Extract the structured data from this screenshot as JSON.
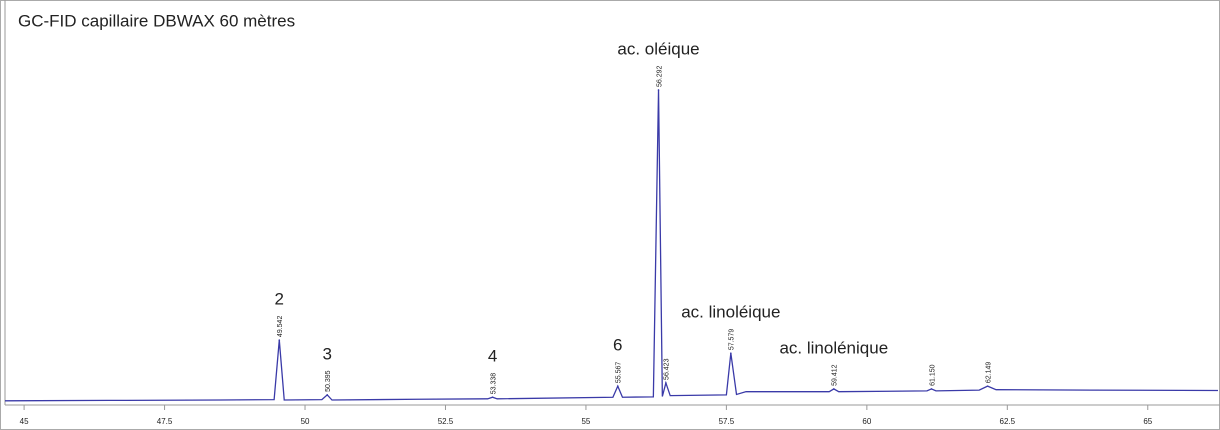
{
  "chart_data": {
    "type": "line",
    "title": "GC-FID capillaire DBWAX 60 mètres",
    "x": [
      44.66,
      46.5,
      48.5,
      49.45,
      49.542,
      49.63,
      50.3,
      50.395,
      50.48,
      52,
      53.25,
      53.338,
      53.42,
      55.48,
      55.567,
      55.65,
      56.2,
      56.292,
      56.36,
      56.423,
      56.5,
      57.5,
      57.579,
      57.68,
      57.85,
      59.33,
      59.412,
      59.5,
      61.07,
      61.15,
      61.23,
      62.0,
      62.149,
      62.3,
      64,
      66.25
    ],
    "series": [
      {
        "color": "#3a3aa8",
        "values": [
          0.3,
          0.4,
          0.5,
          0.6,
          15.6,
          0.5,
          0.6,
          1.8,
          0.5,
          0.7,
          0.8,
          1.2,
          0.8,
          1.2,
          4,
          1.2,
          1.3,
          78.6,
          1.4,
          4.8,
          1.6,
          1.8,
          12.3,
          1.9,
          2.6,
          2.6,
          3.3,
          2.6,
          2.8,
          3.3,
          2.8,
          3.0,
          4.0,
          3.1,
          3.0,
          2.9
        ]
      }
    ],
    "peak_rt": [
      49.542,
      50.395,
      53.338,
      55.567,
      56.292,
      56.423,
      57.579,
      59.412,
      61.15,
      62.149
    ],
    "peak_rt_labels": [
      "49.542",
      "50.395",
      "53.338",
      "55.567",
      "56.292",
      "56.423",
      "57.579",
      "59.412",
      "61.150",
      "62.149"
    ],
    "peak_height": [
      15.6,
      1.8,
      1.2,
      4,
      78.6,
      4.8,
      12.3,
      3.3,
      3.3,
      4.0
    ],
    "peak_names": [
      "2",
      "3",
      "4",
      "6",
      "ac. oléique",
      null,
      "ac. linoléique",
      "ac. linolénique",
      null,
      null
    ],
    "xlim": [
      44.66,
      66.25
    ],
    "xticks": [
      45,
      47.5,
      50,
      52.5,
      55,
      57.5,
      60,
      62.5,
      65
    ],
    "ylim": [
      0,
      100
    ]
  }
}
